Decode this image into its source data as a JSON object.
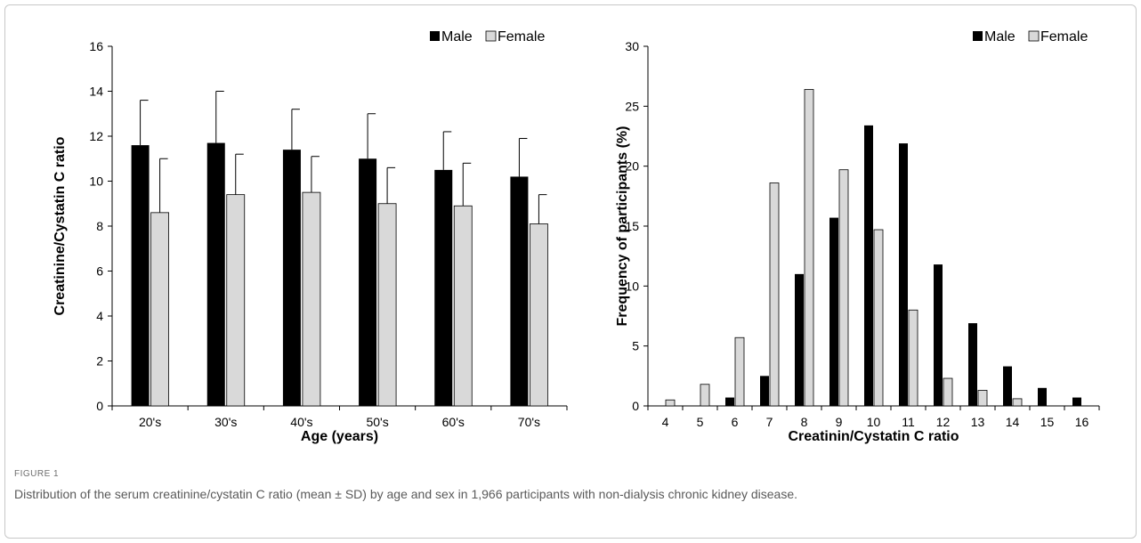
{
  "figure": {
    "label": "FIGURE 1",
    "caption": "Distribution of the serum creatinine/cystatin C ratio (mean ± SD) by age and sex in 1,966 participants with non-dialysis chronic kidney disease."
  },
  "colors": {
    "male": "#000000",
    "female": "#d9d9d9",
    "female_stroke": "#000000",
    "axis": "#000000"
  },
  "chart_data": [
    {
      "type": "bar",
      "xlabel": "Age (years)",
      "ylabel": "Creatinine/Cystatin C ratio",
      "ylim": [
        0,
        16
      ],
      "yticks": [
        0,
        2,
        4,
        6,
        8,
        10,
        12,
        14,
        16
      ],
      "categories": [
        "20's",
        "30's",
        "40's",
        "50's",
        "60's",
        "70's"
      ],
      "legend_position": "top-right",
      "series": [
        {
          "name": "Male",
          "values": [
            11.6,
            11.7,
            11.4,
            11.0,
            10.5,
            10.2
          ],
          "error": [
            2.0,
            2.3,
            1.8,
            2.0,
            1.7,
            1.7
          ]
        },
        {
          "name": "Female",
          "values": [
            8.6,
            9.4,
            9.5,
            9.0,
            8.9,
            8.1
          ],
          "error": [
            2.4,
            1.8,
            1.6,
            1.6,
            1.9,
            1.3
          ]
        }
      ]
    },
    {
      "type": "bar",
      "xlabel": "Creatinin/Cystatin C ratio",
      "ylabel": "Frequency of participants (%)",
      "ylim": [
        0,
        30
      ],
      "yticks": [
        0,
        5,
        10,
        15,
        20,
        25,
        30
      ],
      "categories": [
        "4",
        "5",
        "6",
        "7",
        "8",
        "9",
        "10",
        "11",
        "12",
        "13",
        "14",
        "15",
        "16"
      ],
      "legend_position": "top-right",
      "series": [
        {
          "name": "Male",
          "values": [
            0,
            0,
            0.7,
            2.5,
            11.0,
            15.7,
            23.4,
            21.9,
            11.8,
            6.9,
            3.3,
            1.5,
            0.7
          ]
        },
        {
          "name": "Female",
          "values": [
            0.5,
            1.8,
            5.7,
            18.6,
            26.4,
            19.7,
            14.7,
            8.0,
            2.3,
            1.3,
            0.6,
            0,
            0
          ]
        }
      ]
    }
  ]
}
